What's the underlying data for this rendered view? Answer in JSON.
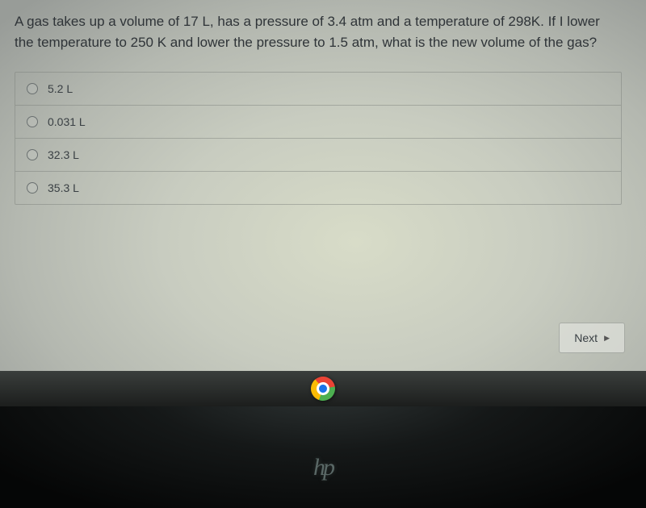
{
  "question": {
    "text": "A gas takes up a volume of 17 L, has a pressure of 3.4 atm and a temperature of 298K. If I lower the temperature to 250 K and lower the pressure to 1.5 atm, what is the new volume of the gas?"
  },
  "options": [
    {
      "label": "5.2 L"
    },
    {
      "label": "0.031 L"
    },
    {
      "label": "32.3 L"
    },
    {
      "label": "35.3 L"
    }
  ],
  "nav": {
    "next_label": "Next"
  },
  "branding": {
    "hp": "hp"
  },
  "colors": {
    "text": "#2f3438",
    "border": "rgba(120,125,120,0.45)",
    "radio_border": "#6a7070"
  }
}
